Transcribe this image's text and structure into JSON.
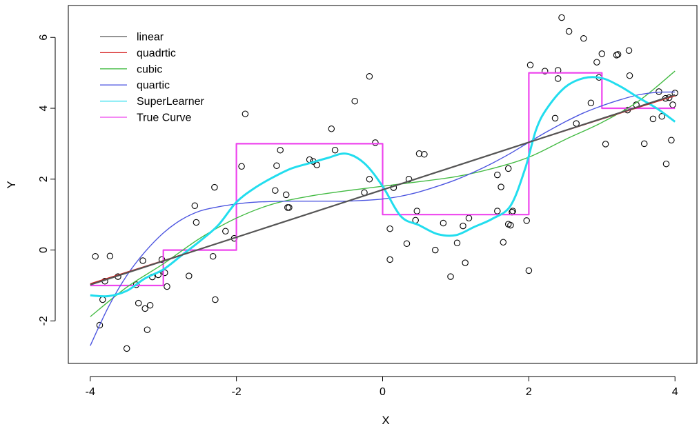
{
  "chart_data": {
    "type": "scatter",
    "xlabel": "X",
    "ylabel": "Y",
    "xlim": [
      -4.3,
      4.3
    ],
    "ylim": [
      -3.2,
      6.9
    ],
    "xticks": [
      -4,
      -2,
      0,
      2,
      4
    ],
    "xtick_labels": [
      "-4",
      "-2",
      "0",
      "2",
      "4"
    ],
    "yticks": [
      -2,
      0,
      2,
      4,
      6
    ],
    "ytick_labels": [
      "-2",
      "0",
      "2",
      "4",
      "6"
    ],
    "grid": false,
    "legend_position": "top-left",
    "points": [
      [
        -3.93,
        -0.18
      ],
      [
        -3.87,
        -2.12
      ],
      [
        -3.83,
        -1.4
      ],
      [
        -3.8,
        -0.88
      ],
      [
        -3.73,
        -0.17
      ],
      [
        -3.62,
        -0.75
      ],
      [
        -3.5,
        -2.78
      ],
      [
        -3.37,
        -0.98
      ],
      [
        -3.34,
        -1.5
      ],
      [
        -3.28,
        -0.3
      ],
      [
        -3.25,
        -1.65
      ],
      [
        -3.22,
        -2.25
      ],
      [
        -3.18,
        -1.56
      ],
      [
        -3.15,
        -0.76
      ],
      [
        -3.07,
        -0.7
      ],
      [
        -3.02,
        -0.27
      ],
      [
        -2.98,
        -0.64
      ],
      [
        -2.95,
        -1.03
      ],
      [
        -2.65,
        -0.73
      ],
      [
        -2.57,
        1.25
      ],
      [
        -2.55,
        0.78
      ],
      [
        -2.32,
        -0.18
      ],
      [
        -2.3,
        1.77
      ],
      [
        -2.29,
        -1.4
      ],
      [
        -2.15,
        0.53
      ],
      [
        -2.03,
        0.33
      ],
      [
        -1.93,
        2.36
      ],
      [
        -1.88,
        3.84
      ],
      [
        -1.47,
        1.68
      ],
      [
        -1.45,
        2.38
      ],
      [
        -1.4,
        2.82
      ],
      [
        -1.32,
        1.56
      ],
      [
        -1.28,
        1.2
      ],
      [
        -1.3,
        1.2
      ],
      [
        -1.0,
        2.55
      ],
      [
        -0.95,
        2.5
      ],
      [
        -0.9,
        2.4
      ],
      [
        -0.7,
        3.42
      ],
      [
        -0.65,
        2.82
      ],
      [
        -0.38,
        4.2
      ],
      [
        -0.25,
        1.62
      ],
      [
        -0.18,
        2.0
      ],
      [
        -0.18,
        4.9
      ],
      [
        -0.1,
        3.03
      ],
      [
        0.1,
        0.6
      ],
      [
        0.1,
        -0.27
      ],
      [
        0.15,
        1.76
      ],
      [
        0.33,
        0.18
      ],
      [
        0.36,
        2.0
      ],
      [
        0.45,
        0.84
      ],
      [
        0.47,
        1.1
      ],
      [
        0.5,
        2.72
      ],
      [
        0.57,
        2.7
      ],
      [
        0.72,
        0.0
      ],
      [
        0.83,
        0.76
      ],
      [
        0.93,
        -0.75
      ],
      [
        1.02,
        0.2
      ],
      [
        1.1,
        0.68
      ],
      [
        1.13,
        -0.36
      ],
      [
        1.18,
        0.9
      ],
      [
        1.57,
        2.12
      ],
      [
        1.57,
        1.1
      ],
      [
        1.62,
        1.78
      ],
      [
        1.65,
        0.22
      ],
      [
        1.72,
        2.3
      ],
      [
        1.72,
        0.73
      ],
      [
        1.75,
        0.7
      ],
      [
        1.77,
        1.07
      ],
      [
        1.78,
        1.1
      ],
      [
        1.97,
        0.83
      ],
      [
        2.0,
        -0.58
      ],
      [
        2.02,
        5.22
      ],
      [
        2.22,
        5.05
      ],
      [
        2.36,
        3.72
      ],
      [
        2.4,
        4.84
      ],
      [
        2.4,
        5.07
      ],
      [
        2.45,
        6.56
      ],
      [
        2.55,
        6.17
      ],
      [
        2.65,
        3.57
      ],
      [
        2.75,
        5.97
      ],
      [
        2.85,
        4.15
      ],
      [
        2.93,
        5.3
      ],
      [
        2.96,
        4.87
      ],
      [
        3.0,
        5.54
      ],
      [
        3.05,
        2.99
      ],
      [
        3.2,
        5.5
      ],
      [
        3.22,
        5.52
      ],
      [
        3.35,
        3.95
      ],
      [
        3.37,
        5.63
      ],
      [
        3.38,
        4.92
      ],
      [
        3.47,
        4.1
      ],
      [
        3.58,
        3.0
      ],
      [
        3.7,
        3.7
      ],
      [
        3.78,
        4.47
      ],
      [
        3.82,
        3.77
      ],
      [
        3.87,
        4.28
      ],
      [
        3.88,
        2.43
      ],
      [
        3.92,
        4.3
      ],
      [
        3.95,
        3.1
      ],
      [
        3.97,
        4.1
      ],
      [
        4.0,
        4.43
      ]
    ],
    "series": [
      {
        "name": "linear",
        "color": "#555555",
        "width": 2.2,
        "step": false,
        "x": [
          -4,
          4
        ],
        "y": [
          -0.98,
          4.38
        ]
      },
      {
        "name": "quadrtic",
        "color": "#d41a1a",
        "width": 1.4,
        "step": false,
        "x": [
          -4,
          -2,
          0,
          2,
          4
        ],
        "y": [
          -0.95,
          0.36,
          1.7,
          3.04,
          4.35
        ]
      },
      {
        "name": "cubic",
        "color": "#44bb44",
        "width": 1.4,
        "step": false,
        "x": [
          -4,
          -3.5,
          -3,
          -2.5,
          -2,
          -1.5,
          -1,
          -0.5,
          0,
          0.5,
          1,
          1.5,
          2,
          2.5,
          3,
          3.5,
          4
        ],
        "y": [
          -1.88,
          -1.05,
          -0.39,
          0.33,
          0.9,
          1.3,
          1.52,
          1.67,
          1.8,
          1.93,
          2.07,
          2.3,
          2.62,
          3.12,
          3.6,
          4.2,
          5.05
        ]
      },
      {
        "name": "quartic",
        "color": "#4c55e0",
        "width": 1.4,
        "step": false,
        "x": [
          -4,
          -3.75,
          -3.5,
          -3.25,
          -3,
          -2.75,
          -2.5,
          -2.25,
          -2,
          -1.75,
          -1.5,
          -1.25,
          -1,
          -0.75,
          -0.5,
          -0.25,
          0,
          0.25,
          0.5,
          0.75,
          1,
          1.25,
          1.5,
          1.75,
          2,
          2.25,
          2.5,
          2.75,
          3,
          3.25,
          3.5,
          3.75,
          4
        ],
        "y": [
          -2.7,
          -1.6,
          -0.72,
          -0.05,
          0.48,
          0.86,
          1.1,
          1.22,
          1.3,
          1.35,
          1.37,
          1.38,
          1.38,
          1.38,
          1.38,
          1.4,
          1.44,
          1.52,
          1.64,
          1.8,
          1.98,
          2.2,
          2.45,
          2.73,
          3.04,
          3.34,
          3.62,
          3.87,
          4.07,
          4.24,
          4.38,
          4.45,
          4.46
        ]
      },
      {
        "name": "SuperLearner",
        "color": "#22ddee",
        "width": 3,
        "step": false,
        "x": [
          -4,
          -3.75,
          -3.5,
          -3.25,
          -3,
          -2.75,
          -2.5,
          -2.25,
          -2,
          -1.75,
          -1.5,
          -1.25,
          -1,
          -0.75,
          -0.5,
          -0.25,
          0,
          0.25,
          0.5,
          0.75,
          1,
          1.25,
          1.5,
          1.75,
          1.95,
          2.1,
          2.25,
          2.5,
          2.75,
          3,
          3.25,
          3.5,
          3.75,
          4
        ],
        "y": [
          -1.28,
          -1.3,
          -1.15,
          -0.8,
          -0.55,
          -0.15,
          0.25,
          0.7,
          1.35,
          1.75,
          2.05,
          2.3,
          2.45,
          2.6,
          2.72,
          2.45,
          1.8,
          0.95,
          0.7,
          0.45,
          0.42,
          0.65,
          0.88,
          1.25,
          2.3,
          3.4,
          4.0,
          4.6,
          4.85,
          4.85,
          4.62,
          4.3,
          4.0,
          3.62
        ]
      },
      {
        "name": "True Curve",
        "color": "#ee44ee",
        "width": 2.2,
        "step": true,
        "x": [
          -4,
          -3,
          -3,
          -2,
          -2,
          0,
          0,
          2,
          2,
          3,
          3,
          4
        ],
        "y": [
          -1,
          -1,
          0,
          0,
          3,
          3,
          1,
          1,
          5,
          5,
          4,
          4
        ]
      }
    ]
  }
}
